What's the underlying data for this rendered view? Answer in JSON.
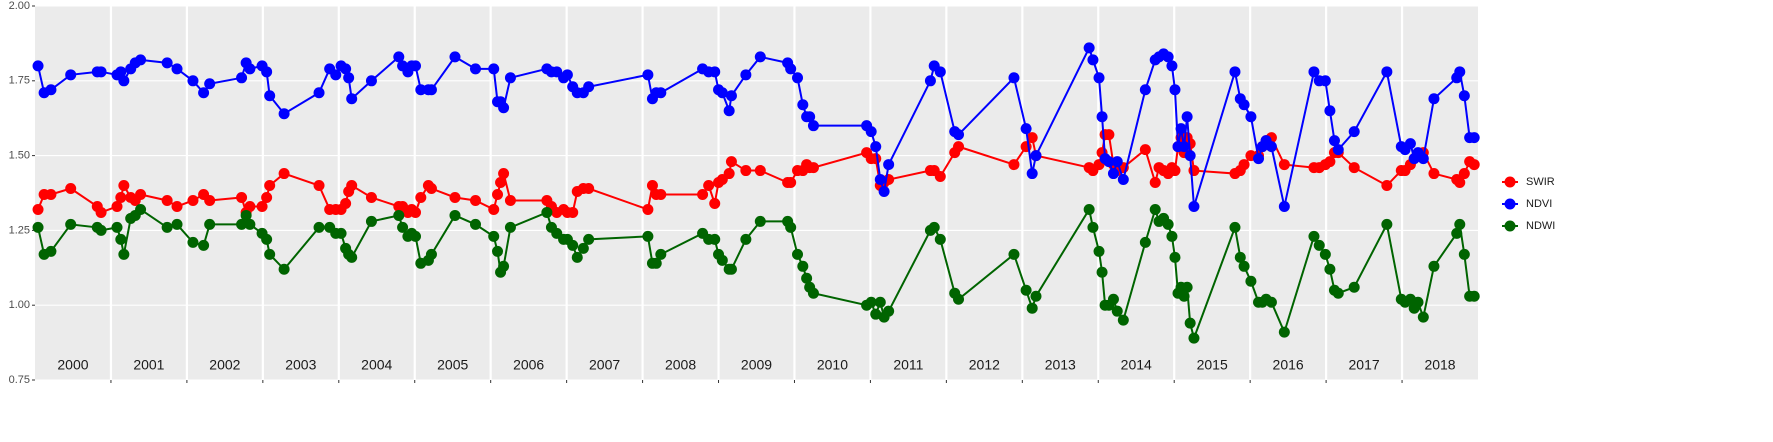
{
  "chart_data": {
    "type": "line",
    "x": [
      2000.04,
      2000.12,
      2000.21,
      2000.47,
      2000.82,
      2000.87,
      2001.08,
      2001.13,
      2001.17,
      2001.26,
      2001.32,
      2001.39,
      2001.74,
      2001.87,
      2002.08,
      2002.22,
      2002.3,
      2002.72,
      2002.78,
      2002.83,
      2002.99,
      2003.05,
      2003.09,
      2003.28,
      2003.74,
      2003.88,
      2003.96,
      2004.03,
      2004.09,
      2004.13,
      2004.17,
      2004.43,
      2004.79,
      2004.84,
      2004.91,
      2004.96,
      2005.01,
      2005.08,
      2005.18,
      2005.22,
      2005.53,
      2005.8,
      2006.04,
      2006.09,
      2006.13,
      2006.17,
      2006.26,
      2006.74,
      2006.8,
      2006.87,
      2006.96,
      2007.01,
      2007.08,
      2007.14,
      2007.22,
      2007.29,
      2008.07,
      2008.13,
      2008.18,
      2008.24,
      2008.79,
      2008.87,
      2008.95,
      2009.0,
      2009.05,
      2009.14,
      2009.17,
      2009.36,
      2009.55,
      2009.91,
      2009.95,
      2010.04,
      2010.11,
      2010.16,
      2010.2,
      2010.25,
      2010.95,
      2011.01,
      2011.07,
      2011.13,
      2011.18,
      2011.24,
      2011.79,
      2011.84,
      2011.92,
      2012.11,
      2012.16,
      2012.89,
      2013.05,
      2013.13,
      2013.18,
      2013.88,
      2013.93,
      2014.01,
      2014.05,
      2014.09,
      2014.14,
      2014.2,
      2014.25,
      2014.33,
      2014.62,
      2014.75,
      2014.8,
      2014.86,
      2014.92,
      2014.97,
      2015.01,
      2015.05,
      2015.09,
      2015.13,
      2015.17,
      2015.21,
      2015.26,
      2015.8,
      2015.87,
      2015.92,
      2016.01,
      2016.11,
      2016.16,
      2016.21,
      2016.28,
      2016.45,
      2016.84,
      2016.91,
      2016.99,
      2017.05,
      2017.11,
      2017.16,
      2017.37,
      2017.8,
      2017.99,
      2018.04,
      2018.11,
      2018.16,
      2018.21,
      2018.28,
      2018.42,
      2018.72,
      2018.76,
      2018.82,
      2018.89,
      2018.95
    ],
    "series": [
      {
        "name": "SWIR",
        "color": "#ff0000",
        "values": [
          1.32,
          1.37,
          1.37,
          1.39,
          1.33,
          1.31,
          1.33,
          1.36,
          1.4,
          1.36,
          1.35,
          1.37,
          1.35,
          1.33,
          1.35,
          1.37,
          1.35,
          1.36,
          1.31,
          1.33,
          1.33,
          1.36,
          1.4,
          1.44,
          1.4,
          1.32,
          1.32,
          1.32,
          1.34,
          1.38,
          1.4,
          1.36,
          1.33,
          1.33,
          1.31,
          1.32,
          1.31,
          1.36,
          1.4,
          1.39,
          1.36,
          1.35,
          1.32,
          1.37,
          1.41,
          1.44,
          1.35,
          1.35,
          1.33,
          1.31,
          1.32,
          1.31,
          1.31,
          1.38,
          1.39,
          1.39,
          1.32,
          1.4,
          1.37,
          1.37,
          1.37,
          1.4,
          1.34,
          1.41,
          1.42,
          1.44,
          1.48,
          1.45,
          1.45,
          1.41,
          1.41,
          1.45,
          1.45,
          1.47,
          1.46,
          1.46,
          1.51,
          1.49,
          1.49,
          1.4,
          1.41,
          1.42,
          1.45,
          1.45,
          1.43,
          1.51,
          1.53,
          1.47,
          1.53,
          1.56,
          1.5,
          1.46,
          1.45,
          1.47,
          1.51,
          1.57,
          1.57,
          1.47,
          1.45,
          1.46,
          1.52,
          1.41,
          1.46,
          1.45,
          1.44,
          1.46,
          1.45,
          1.53,
          1.56,
          1.51,
          1.56,
          1.54,
          1.45,
          1.44,
          1.45,
          1.47,
          1.5,
          1.5,
          1.53,
          1.55,
          1.56,
          1.47,
          1.46,
          1.46,
          1.47,
          1.48,
          1.51,
          1.51,
          1.46,
          1.4,
          1.45,
          1.45,
          1.47,
          1.49,
          1.5,
          1.51,
          1.44,
          1.42,
          1.41,
          1.44,
          1.48,
          1.47
        ]
      },
      {
        "name": "NDVI",
        "color": "#0000ff",
        "values": [
          1.8,
          1.71,
          1.72,
          1.77,
          1.78,
          1.78,
          1.77,
          1.78,
          1.75,
          1.79,
          1.81,
          1.82,
          1.81,
          1.79,
          1.75,
          1.71,
          1.74,
          1.76,
          1.81,
          1.79,
          1.8,
          1.78,
          1.7,
          1.64,
          1.71,
          1.79,
          1.77,
          1.8,
          1.79,
          1.76,
          1.69,
          1.75,
          1.83,
          1.8,
          1.78,
          1.8,
          1.8,
          1.72,
          1.72,
          1.72,
          1.83,
          1.79,
          1.79,
          1.68,
          1.68,
          1.66,
          1.76,
          1.79,
          1.78,
          1.78,
          1.76,
          1.77,
          1.73,
          1.71,
          1.71,
          1.73,
          1.77,
          1.69,
          1.71,
          1.71,
          1.79,
          1.78,
          1.78,
          1.72,
          1.71,
          1.65,
          1.7,
          1.77,
          1.83,
          1.81,
          1.79,
          1.76,
          1.67,
          1.63,
          1.63,
          1.6,
          1.6,
          1.58,
          1.53,
          1.42,
          1.38,
          1.47,
          1.75,
          1.8,
          1.78,
          1.58,
          1.57,
          1.76,
          1.59,
          1.44,
          1.5,
          1.86,
          1.82,
          1.76,
          1.63,
          1.49,
          1.48,
          1.44,
          1.48,
          1.42,
          1.72,
          1.82,
          1.83,
          1.84,
          1.83,
          1.8,
          1.72,
          1.53,
          1.59,
          1.53,
          1.63,
          1.5,
          1.33,
          1.78,
          1.69,
          1.67,
          1.63,
          1.49,
          1.53,
          1.55,
          1.53,
          1.33,
          1.78,
          1.75,
          1.75,
          1.65,
          1.55,
          1.52,
          1.58,
          1.78,
          1.53,
          1.52,
          1.54,
          1.49,
          1.51,
          1.49,
          1.69,
          1.76,
          1.78,
          1.7,
          1.56,
          1.56
        ]
      },
      {
        "name": "NDWI",
        "color": "#006400",
        "values": [
          1.26,
          1.17,
          1.18,
          1.27,
          1.26,
          1.25,
          1.26,
          1.22,
          1.17,
          1.29,
          1.3,
          1.32,
          1.26,
          1.27,
          1.21,
          1.2,
          1.27,
          1.27,
          1.3,
          1.27,
          1.24,
          1.22,
          1.17,
          1.12,
          1.26,
          1.26,
          1.24,
          1.24,
          1.19,
          1.17,
          1.16,
          1.28,
          1.3,
          1.26,
          1.23,
          1.24,
          1.23,
          1.14,
          1.15,
          1.17,
          1.3,
          1.27,
          1.23,
          1.18,
          1.11,
          1.13,
          1.26,
          1.31,
          1.26,
          1.24,
          1.22,
          1.22,
          1.2,
          1.16,
          1.19,
          1.22,
          1.23,
          1.14,
          1.14,
          1.17,
          1.24,
          1.22,
          1.22,
          1.17,
          1.15,
          1.12,
          1.12,
          1.22,
          1.28,
          1.28,
          1.26,
          1.17,
          1.13,
          1.09,
          1.06,
          1.04,
          1.0,
          1.01,
          0.97,
          1.01,
          0.96,
          0.98,
          1.25,
          1.26,
          1.22,
          1.04,
          1.02,
          1.17,
          1.05,
          0.99,
          1.03,
          1.32,
          1.26,
          1.18,
          1.11,
          1.0,
          1.0,
          1.02,
          0.98,
          0.95,
          1.21,
          1.32,
          1.28,
          1.29,
          1.27,
          1.23,
          1.16,
          1.04,
          1.06,
          1.03,
          1.06,
          0.94,
          0.89,
          1.26,
          1.16,
          1.13,
          1.08,
          1.01,
          1.01,
          1.02,
          1.01,
          0.91,
          1.23,
          1.2,
          1.17,
          1.12,
          1.05,
          1.04,
          1.06,
          1.27,
          1.02,
          1.01,
          1.02,
          0.99,
          1.01,
          0.96,
          1.13,
          1.24,
          1.27,
          1.17,
          1.03,
          1.03
        ]
      }
    ],
    "xlim": [
      2000,
      2019
    ],
    "xticks": [
      2001,
      2002,
      2003,
      2004,
      2005,
      2006,
      2007,
      2008,
      2009,
      2010,
      2011,
      2012,
      2013,
      2014,
      2015,
      2016,
      2017,
      2018
    ],
    "year_labels": [
      2000,
      2001,
      2002,
      2003,
      2004,
      2005,
      2006,
      2007,
      2008,
      2009,
      2010,
      2011,
      2012,
      2013,
      2014,
      2015,
      2016,
      2017,
      2018
    ],
    "ylim": [
      0.75,
      2.0
    ],
    "yticks": [
      {
        "value": 0.75,
        "label": "0.75"
      },
      {
        "value": 1.0,
        "label": "1.00"
      },
      {
        "value": 1.25,
        "label": "1.25"
      },
      {
        "value": 1.5,
        "label": "1.50"
      },
      {
        "value": 1.75,
        "label": "1.75"
      },
      {
        "value": 2.0,
        "label": "2.00"
      }
    ],
    "grid": true,
    "legend": "right"
  }
}
